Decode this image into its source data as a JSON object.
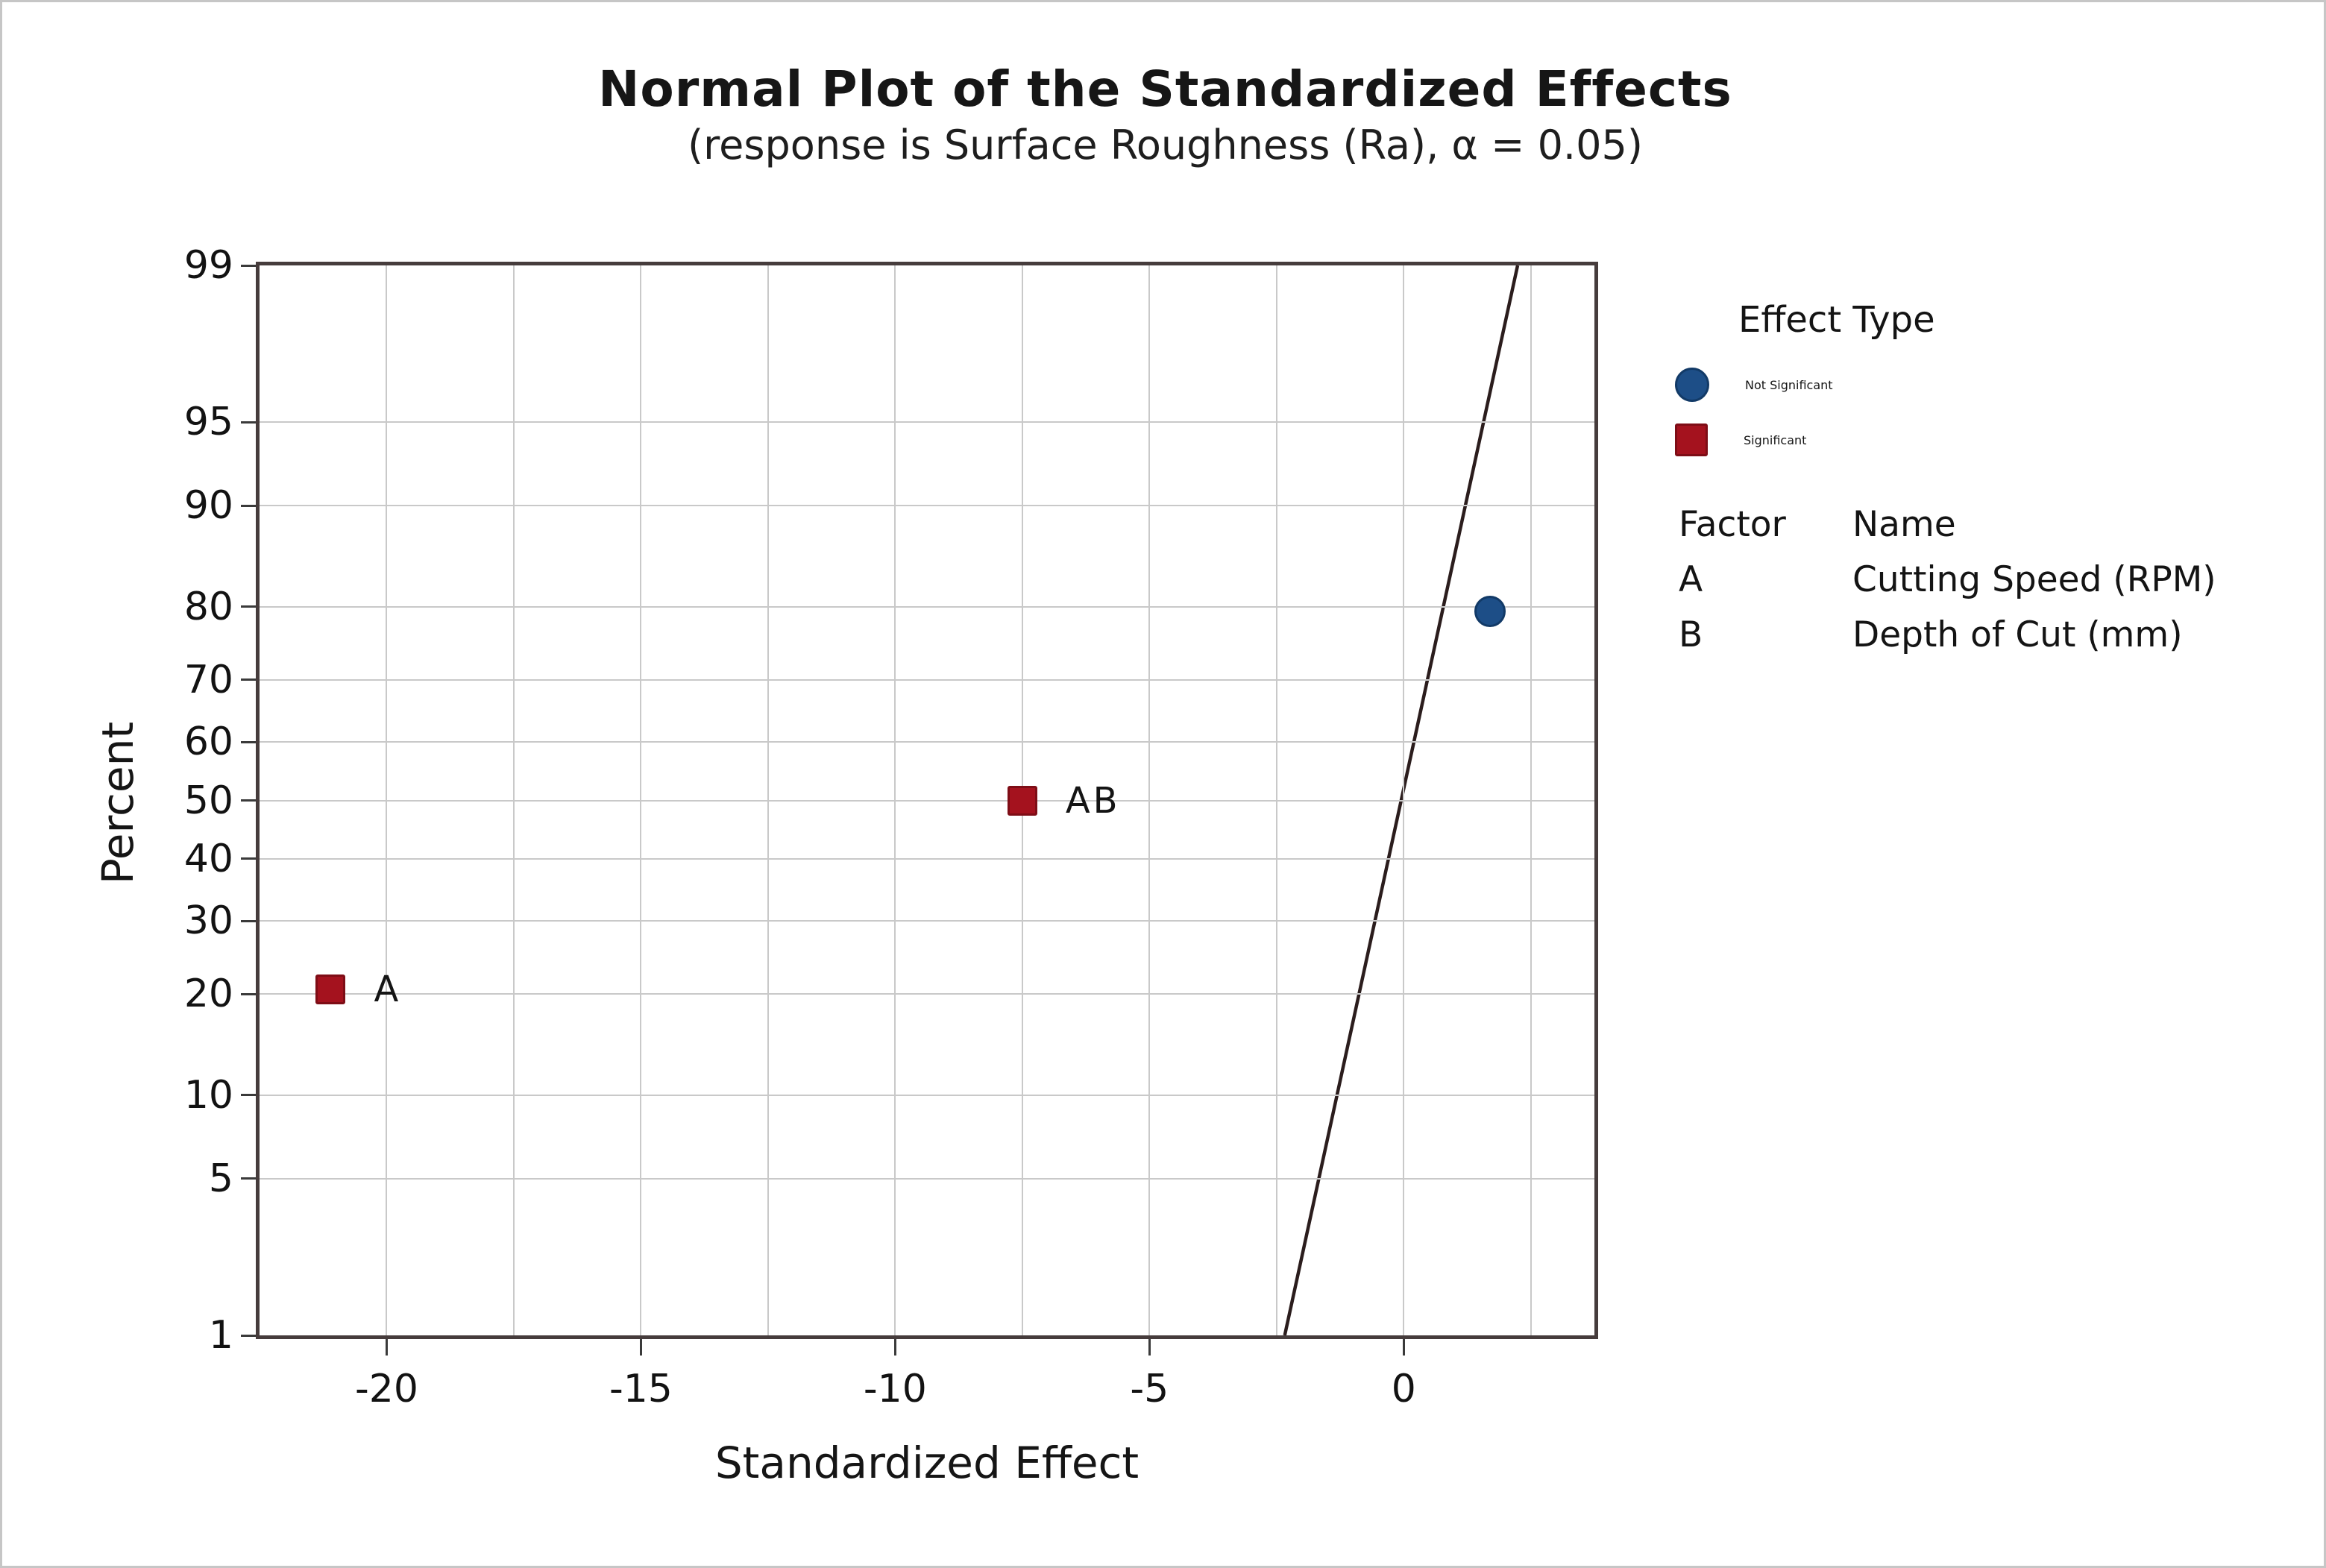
{
  "chart_data": {
    "type": "scatter",
    "title": "Normal Plot of the Standardized Effects",
    "subtitle": "(response is Surface Roughness (Ra), α = 0.05)",
    "xlabel": "Standardized Effect",
    "ylabel": "Percent",
    "x_axis": {
      "min": -22.5,
      "max": 3.75,
      "tick_values": [
        -20,
        -15,
        -10,
        -5,
        0
      ],
      "grid_step": 2.5,
      "grid": true
    },
    "y_axis": {
      "scale": "normal-probability",
      "tick_percents": [
        1,
        5,
        10,
        20,
        30,
        40,
        50,
        60,
        70,
        80,
        90,
        95,
        99
      ],
      "grid": true
    },
    "points": [
      {
        "label": "A",
        "effect": -21.1,
        "percent": 20.6,
        "type": "significant"
      },
      {
        "label": "AB",
        "effect": -7.5,
        "percent": 50,
        "type": "significant"
      },
      {
        "label": "",
        "effect": 1.7,
        "percent": 79.4,
        "type": "not_significant"
      }
    ],
    "fit_line": {
      "p_start": 1,
      "x_start": -2.34,
      "p_end": 99,
      "x_end": 2.24
    },
    "colors": {
      "significant": "#a4121e",
      "significant_border": "#7e0d16",
      "not_significant": "#1d4e87",
      "not_significant_border": "#123a67",
      "fit_line": "#2b1d1d",
      "grid": "#c9c9c9",
      "frame": "#463c3c",
      "tick": "#3a3a3a",
      "text": "#141414"
    },
    "legend_position": "right"
  },
  "legend": {
    "title": "Effect Type",
    "items": [
      {
        "label": "Not Significant",
        "marker": "circle"
      },
      {
        "label": "Significant",
        "marker": "square"
      }
    ]
  },
  "factor_table": {
    "header": [
      "Factor",
      "Name"
    ],
    "rows": [
      [
        "A",
        "Cutting Speed (RPM)"
      ],
      [
        "B",
        "Depth of Cut (mm)"
      ]
    ]
  }
}
